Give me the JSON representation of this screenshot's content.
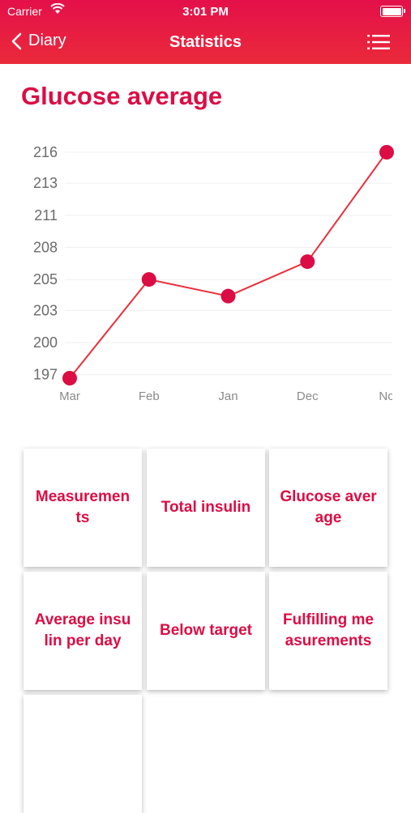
{
  "status_bar": {
    "carrier": "Carrier",
    "time": "3:01 PM"
  },
  "nav": {
    "back_label": "Diary",
    "title": "Statistics"
  },
  "page": {
    "title": "Glucose average"
  },
  "chart_data": {
    "type": "line",
    "title": "",
    "categories": [
      "Mar",
      "Feb",
      "Jan",
      "Dec",
      "No"
    ],
    "values": [
      197,
      205.3,
      203.9,
      206.8,
      216
    ],
    "y_ticks": [
      "216",
      "213",
      "211",
      "208",
      "205",
      "203",
      "200",
      "197"
    ],
    "y_tick_values": [
      216,
      213.4,
      210.7,
      208.0,
      205.3,
      202.7,
      200.0,
      197.3
    ],
    "ylim": [
      197,
      216
    ],
    "grid": true,
    "color": "#e8303c",
    "point_color": "#dc0d44"
  },
  "tiles": [
    {
      "label": "Measurements"
    },
    {
      "label": "Total insulin"
    },
    {
      "label": "Glucose average"
    },
    {
      "label": "Average insulin per day"
    },
    {
      "label": "Below target"
    },
    {
      "label": "Fulfilling measurements"
    },
    {
      "label": ""
    }
  ]
}
